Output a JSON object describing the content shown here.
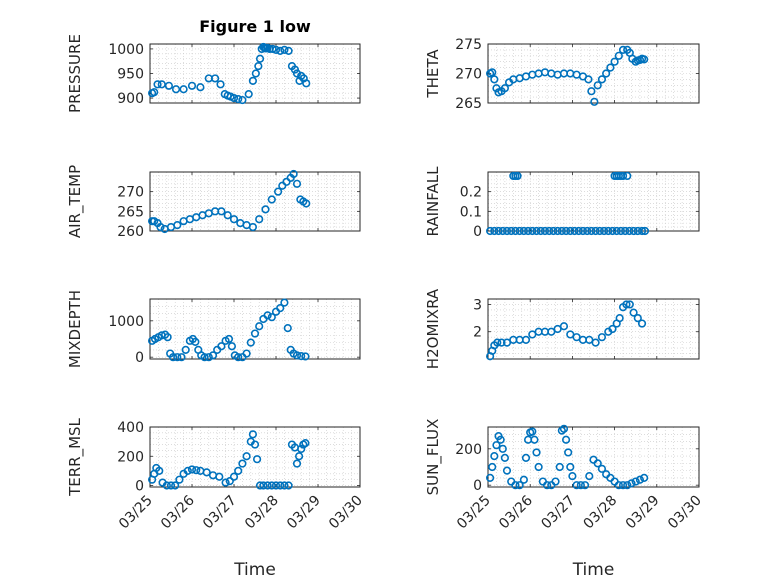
{
  "chart_data": [
    {
      "type": "scatter",
      "title": "Figure 1 low",
      "ylabel": "PRESSURE",
      "ylim": [
        890,
        1010
      ],
      "yticks": [
        900,
        950,
        1000
      ],
      "xlim": [
        0,
        5
      ],
      "xticks": [
        0,
        1,
        2,
        3,
        4,
        5
      ],
      "xticklabels": [],
      "xlabel": "",
      "grid": true,
      "x": [
        0.05,
        0.1,
        0.18,
        0.28,
        0.45,
        0.62,
        0.8,
        1.0,
        1.2,
        1.4,
        1.55,
        1.68,
        1.78,
        1.85,
        1.92,
        2.0,
        2.1,
        2.2,
        2.35,
        2.45,
        2.52,
        2.58,
        2.62,
        2.66,
        2.7,
        2.73,
        2.76,
        2.8,
        2.85,
        2.92,
        3.0,
        3.1,
        3.2,
        3.3,
        3.38,
        3.45,
        3.5,
        3.56,
        3.6,
        3.66,
        3.72
      ],
      "y": [
        910,
        912,
        928,
        928,
        925,
        918,
        918,
        925,
        922,
        940,
        940,
        928,
        908,
        905,
        903,
        900,
        898,
        896,
        908,
        935,
        950,
        965,
        980,
        1000,
        1004,
        1002,
        1001,
        1002,
        1000,
        1000,
        998,
        996,
        998,
        996,
        965,
        958,
        950,
        935,
        945,
        940,
        930
      ]
    },
    {
      "type": "scatter",
      "ylabel": "THETA",
      "ylim": [
        265,
        275
      ],
      "yticks": [
        265,
        270,
        275
      ],
      "xlim": [
        0,
        5
      ],
      "xticks": [
        0,
        1,
        2,
        3,
        4,
        5
      ],
      "xticklabels": [],
      "xlabel": "",
      "grid": true,
      "x": [
        0.05,
        0.1,
        0.15,
        0.2,
        0.25,
        0.32,
        0.4,
        0.5,
        0.6,
        0.75,
        0.9,
        1.05,
        1.2,
        1.35,
        1.5,
        1.65,
        1.8,
        1.95,
        2.1,
        2.25,
        2.38,
        2.45,
        2.52,
        2.6,
        2.7,
        2.8,
        2.9,
        3.0,
        3.1,
        3.2,
        3.3,
        3.36,
        3.42,
        3.5,
        3.55,
        3.6,
        3.65,
        3.7
      ],
      "y": [
        270,
        270.2,
        269,
        267.5,
        266.8,
        267,
        267.5,
        268.5,
        269,
        269.2,
        269.5,
        269.8,
        270,
        270.2,
        270,
        269.8,
        270,
        270,
        269.8,
        269.5,
        269,
        267,
        265.2,
        268,
        269,
        270,
        271,
        272,
        273,
        274,
        274,
        273.5,
        272.5,
        272,
        272.2,
        272.3,
        272.5,
        272.4
      ]
    },
    {
      "type": "scatter",
      "ylabel": "AIR_TEMP",
      "ylim": [
        260,
        275
      ],
      "yticks": [
        260,
        265,
        270
      ],
      "xlim": [
        0,
        5
      ],
      "xticks": [
        0,
        1,
        2,
        3,
        4,
        5
      ],
      "xticklabels": [],
      "xlabel": "",
      "grid": true,
      "x": [
        0.05,
        0.1,
        0.18,
        0.25,
        0.35,
        0.5,
        0.65,
        0.8,
        0.95,
        1.1,
        1.25,
        1.4,
        1.55,
        1.7,
        1.85,
        2.0,
        2.15,
        2.3,
        2.45,
        2.6,
        2.75,
        2.9,
        3.05,
        3.15,
        3.25,
        3.35,
        3.42,
        3.5,
        3.58,
        3.65,
        3.72
      ],
      "y": [
        262.5,
        262.5,
        262,
        261,
        260.5,
        261,
        261.5,
        262.5,
        263,
        263.5,
        264,
        264.5,
        265,
        265,
        264,
        263,
        262,
        261.5,
        261,
        263,
        265.5,
        268,
        270,
        271.5,
        272.5,
        273.5,
        274.5,
        272,
        268,
        267.5,
        267
      ]
    },
    {
      "type": "scatter",
      "ylabel": "RAINFALL",
      "ylim": [
        0,
        0.3
      ],
      "yticks": [
        0,
        0.1,
        0.2
      ],
      "xlim": [
        0,
        5
      ],
      "xticks": [
        0,
        1,
        2,
        3,
        4,
        5
      ],
      "xticklabels": [],
      "xlabel": "",
      "grid": true,
      "x": [
        0.05,
        0.15,
        0.25,
        0.35,
        0.45,
        0.55,
        0.65,
        0.75,
        0.85,
        0.95,
        1.05,
        1.15,
        1.25,
        1.35,
        1.45,
        1.55,
        1.65,
        1.75,
        1.85,
        1.95,
        2.05,
        2.15,
        2.25,
        2.35,
        2.45,
        2.55,
        2.65,
        2.75,
        2.85,
        2.95,
        3.05,
        3.15,
        3.25,
        3.35,
        3.45,
        3.55,
        3.65,
        3.72,
        0.6,
        0.65,
        0.7,
        3.0,
        3.05,
        3.1,
        3.15,
        3.2,
        3.3
      ],
      "y": [
        0,
        0,
        0,
        0,
        0,
        0,
        0,
        0,
        0,
        0,
        0,
        0,
        0,
        0,
        0,
        0,
        0,
        0,
        0,
        0,
        0,
        0,
        0,
        0,
        0,
        0,
        0,
        0,
        0,
        0,
        0,
        0,
        0,
        0,
        0,
        0,
        0,
        0,
        0.28,
        0.28,
        0.28,
        0.28,
        0.28,
        0.28,
        0.28,
        0.28,
        0.28
      ]
    },
    {
      "type": "scatter",
      "ylabel": "MIXDEPTH",
      "ylim": [
        -50,
        1600
      ],
      "yticks": [
        0,
        1000
      ],
      "xlim": [
        0,
        5
      ],
      "xticks": [
        0,
        1,
        2,
        3,
        4,
        5
      ],
      "xticklabels": [],
      "xlabel": "",
      "grid": true,
      "x": [
        0.05,
        0.12,
        0.2,
        0.28,
        0.36,
        0.42,
        0.48,
        0.55,
        0.65,
        0.75,
        0.85,
        0.95,
        1.02,
        1.08,
        1.15,
        1.22,
        1.3,
        1.4,
        1.5,
        1.6,
        1.7,
        1.8,
        1.88,
        1.95,
        2.02,
        2.1,
        2.2,
        2.3,
        2.4,
        2.5,
        2.6,
        2.7,
        2.8,
        2.9,
        3.0,
        3.1,
        3.2,
        3.28,
        3.35,
        3.42,
        3.5,
        3.6,
        3.7
      ],
      "y": [
        450,
        500,
        550,
        600,
        620,
        550,
        100,
        0,
        0,
        0,
        200,
        450,
        500,
        420,
        200,
        50,
        0,
        0,
        50,
        200,
        300,
        450,
        500,
        300,
        50,
        0,
        0,
        100,
        400,
        650,
        850,
        1050,
        1150,
        1100,
        1250,
        1350,
        1500,
        800,
        200,
        100,
        50,
        30,
        20
      ]
    },
    {
      "type": "scatter",
      "ylabel": "H2OMIXRA",
      "ylim": [
        1,
        3.2
      ],
      "yticks": [
        2,
        3
      ],
      "xlim": [
        0,
        5
      ],
      "xticks": [
        0,
        1,
        2,
        3,
        4,
        5
      ],
      "xticklabels": [],
      "xlabel": "",
      "grid": true,
      "x": [
        0.05,
        0.1,
        0.15,
        0.22,
        0.32,
        0.45,
        0.6,
        0.75,
        0.9,
        1.05,
        1.2,
        1.35,
        1.5,
        1.65,
        1.8,
        1.95,
        2.1,
        2.25,
        2.4,
        2.55,
        2.7,
        2.85,
        2.95,
        3.05,
        3.12,
        3.2,
        3.28,
        3.36,
        3.45,
        3.55,
        3.65
      ],
      "y": [
        1.1,
        1.3,
        1.5,
        1.6,
        1.6,
        1.6,
        1.7,
        1.7,
        1.7,
        1.9,
        2,
        2,
        2,
        2.1,
        2.2,
        1.9,
        1.8,
        1.7,
        1.7,
        1.6,
        1.8,
        2,
        2.1,
        2.3,
        2.5,
        2.9,
        3,
        3,
        2.7,
        2.5,
        2.3
      ]
    },
    {
      "type": "scatter",
      "ylabel": "TERR_MSL",
      "ylim": [
        -10,
        400
      ],
      "yticks": [
        0,
        200,
        400
      ],
      "xlim": [
        0,
        5
      ],
      "xticks": [
        0,
        1,
        2,
        3,
        4,
        5
      ],
      "xticklabels": [
        "03/25",
        "03/26",
        "03/27",
        "03/28",
        "03/29",
        "03/30"
      ],
      "xlabel": "Time",
      "grid": true,
      "x": [
        0.05,
        0.1,
        0.15,
        0.22,
        0.3,
        0.4,
        0.5,
        0.6,
        0.7,
        0.8,
        0.9,
        1.0,
        1.1,
        1.2,
        1.35,
        1.5,
        1.65,
        1.8,
        1.9,
        2.0,
        2.1,
        2.2,
        2.3,
        2.4,
        2.45,
        2.5,
        2.55,
        2.62,
        2.7,
        2.8,
        2.9,
        3.0,
        3.1,
        3.2,
        3.3,
        3.38,
        3.45,
        3.5,
        3.55,
        3.6,
        3.65,
        3.7
      ],
      "y": [
        40,
        80,
        120,
        100,
        20,
        0,
        0,
        0,
        40,
        80,
        100,
        110,
        105,
        100,
        90,
        70,
        60,
        20,
        30,
        60,
        100,
        150,
        200,
        300,
        350,
        280,
        180,
        0,
        0,
        0,
        0,
        0,
        0,
        0,
        0,
        280,
        260,
        150,
        200,
        250,
        280,
        290
      ]
    },
    {
      "type": "scatter",
      "ylabel": "SUN_FLUX",
      "ylim": [
        -10,
        320
      ],
      "yticks": [
        0,
        200
      ],
      "xlim": [
        0,
        5
      ],
      "xticks": [
        0,
        1,
        2,
        3,
        4,
        5
      ],
      "xticklabels": [
        "03/25",
        "03/26",
        "03/27",
        "03/28",
        "03/29",
        "03/30"
      ],
      "xlabel": "Time",
      "grid": true,
      "x": [
        0.05,
        0.1,
        0.15,
        0.2,
        0.25,
        0.3,
        0.35,
        0.4,
        0.45,
        0.55,
        0.65,
        0.75,
        0.85,
        0.9,
        0.95,
        1.0,
        1.05,
        1.1,
        1.15,
        1.2,
        1.3,
        1.4,
        1.5,
        1.6,
        1.7,
        1.75,
        1.8,
        1.85,
        1.9,
        1.95,
        2.0,
        2.1,
        2.2,
        2.3,
        2.4,
        2.5,
        2.6,
        2.7,
        2.8,
        2.9,
        3.0,
        3.1,
        3.2,
        3.3,
        3.4,
        3.5,
        3.6,
        3.7
      ],
      "y": [
        40,
        100,
        160,
        220,
        270,
        250,
        200,
        150,
        80,
        20,
        0,
        0,
        30,
        150,
        250,
        290,
        295,
        250,
        180,
        100,
        20,
        0,
        0,
        20,
        100,
        300,
        310,
        250,
        180,
        100,
        50,
        0,
        0,
        0,
        50,
        140,
        120,
        90,
        60,
        40,
        20,
        0,
        0,
        0,
        10,
        20,
        30,
        40
      ]
    }
  ]
}
